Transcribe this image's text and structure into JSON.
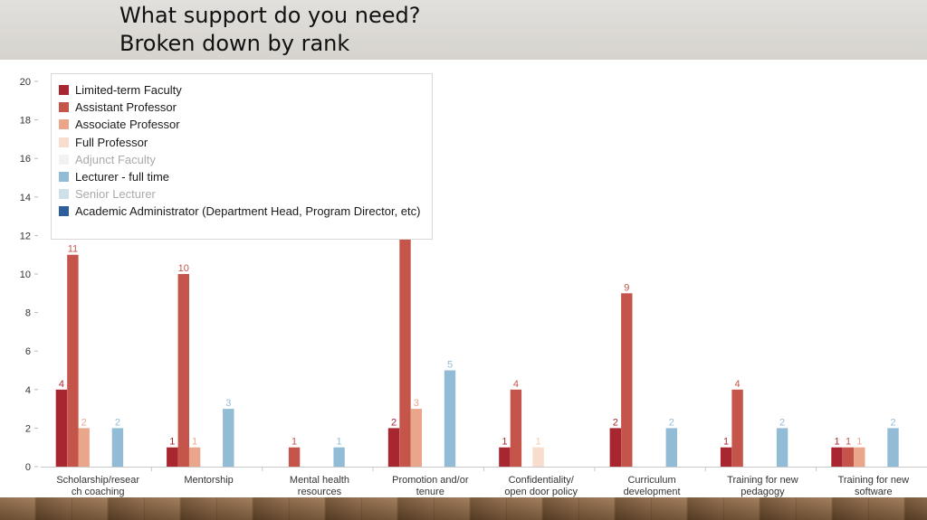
{
  "slide": {
    "title_lines": [
      "What support do you need?",
      "Broken down by rank"
    ]
  },
  "chart_data": {
    "type": "bar",
    "categories": [
      [
        "Scholarship/resear",
        "ch coaching"
      ],
      [
        "Mentorship"
      ],
      [
        "Mental health",
        "resources"
      ],
      [
        "Promotion and/or",
        "tenure"
      ],
      [
        "Confidentiality/",
        "open door policy"
      ],
      [
        "Curriculum",
        "development"
      ],
      [
        "Training for new",
        "pedagogy"
      ],
      [
        "Training for new",
        "software"
      ]
    ],
    "ylim": [
      0,
      20
    ],
    "yticks": [
      0,
      2,
      4,
      6,
      8,
      10,
      12,
      14,
      16,
      18,
      20
    ],
    "grid": false,
    "legend_position": "top-left",
    "series": [
      {
        "name": "Limited-term Faculty",
        "color": "#a8262f",
        "faded": false,
        "values": [
          4,
          1,
          null,
          2,
          1,
          2,
          1,
          1
        ]
      },
      {
        "name": "Assistant Professor",
        "color": "#c5554b",
        "faded": false,
        "values": [
          11,
          10,
          1,
          18,
          4,
          9,
          4,
          1
        ]
      },
      {
        "name": "Associate Professor",
        "color": "#e9a68a",
        "faded": false,
        "values": [
          2,
          1,
          null,
          3,
          null,
          null,
          null,
          1
        ]
      },
      {
        "name": "Full Professor",
        "color": "#f8dccd",
        "faded": false,
        "values": [
          null,
          null,
          null,
          null,
          1,
          null,
          null,
          null
        ]
      },
      {
        "name": "Adjunct Faculty",
        "color": "#f2f2f2",
        "faded": true,
        "values": [
          null,
          null,
          null,
          null,
          null,
          null,
          null,
          null
        ]
      },
      {
        "name": "Lecturer - full time",
        "color": "#92bcd6",
        "faded": false,
        "values": [
          2,
          3,
          1,
          5,
          null,
          2,
          2,
          2
        ]
      },
      {
        "name": "Senior Lecturer",
        "color": "#cfe0ea",
        "faded": true,
        "values": [
          null,
          null,
          null,
          null,
          null,
          null,
          null,
          null
        ]
      },
      {
        "name": "Academic Administrator (Department Head, Program Director, etc)",
        "color": "#2d5f9a",
        "faded": false,
        "values": [
          null,
          null,
          null,
          null,
          null,
          null,
          null,
          null
        ]
      }
    ]
  }
}
